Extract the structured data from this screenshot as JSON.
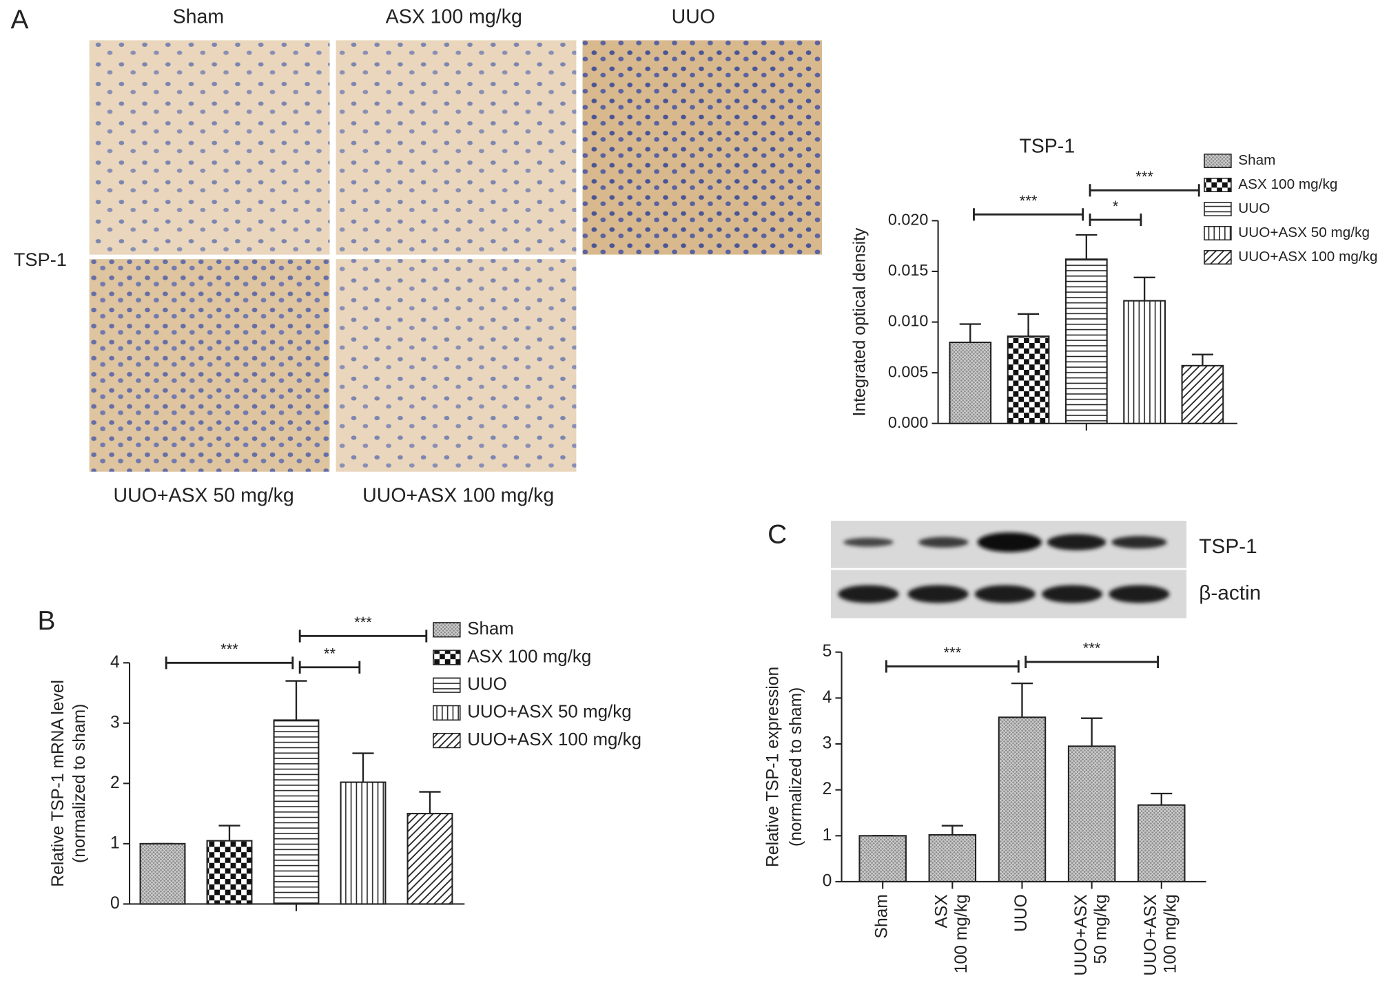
{
  "figure": {
    "panel_labels": [
      "A",
      "B",
      "C"
    ],
    "micrographs": {
      "row_label": "TSP-1",
      "labels": [
        "Sham",
        "ASX 100 mg/kg",
        "UUO",
        "UUO+ASX 50 mg/kg",
        "UUO+ASX 100 mg/kg"
      ]
    },
    "blot": {
      "labels": [
        "TSP-1",
        "β-actin"
      ]
    }
  },
  "chart_data": [
    {
      "type": "bar",
      "title": "TSP-1",
      "ylabel": [
        "Integrated optical density"
      ],
      "categories": [
        "Sham",
        "ASX 100 mg/kg",
        "UUO",
        "UUO+ASX 50 mg/kg",
        "UUO+ASX 100 mg/kg"
      ],
      "values": [
        0.008,
        0.0086,
        0.0162,
        0.0121,
        0.0057
      ],
      "errors": [
        0.0018,
        0.0022,
        0.0024,
        0.0023,
        0.0011
      ],
      "patterns": [
        "crosshatch",
        "checker",
        "hlines",
        "vlines",
        "diagonal"
      ],
      "ylim": [
        0,
        0.02
      ],
      "yticks": [
        {
          "value": 0,
          "label": "0.000"
        },
        {
          "value": 0.005,
          "label": "0.005"
        },
        {
          "value": 0.01,
          "label": "0.010"
        },
        {
          "value": 0.015,
          "label": "0.015"
        },
        {
          "value": 0.02,
          "label": "0.020"
        }
      ],
      "legend": true,
      "significance": [
        {
          "label": "***",
          "from": "Sham",
          "to": "UUO"
        },
        {
          "label": "*",
          "from": "UUO",
          "to": "UUO+ASX 50 mg/kg"
        },
        {
          "label": "***",
          "from": "UUO",
          "to": "UUO+ASX 100 mg/kg"
        }
      ]
    },
    {
      "type": "bar",
      "ylabel": [
        "Relative TSP-1 mRNA level",
        "(normalized to sham)"
      ],
      "categories": [
        "Sham",
        "ASX 100 mg/kg",
        "UUO",
        "UUO+ASX 50 mg/kg",
        "UUO+ASX 100 mg/kg"
      ],
      "values": [
        1.0,
        1.05,
        3.05,
        2.02,
        1.5
      ],
      "errors": [
        0,
        0.25,
        0.65,
        0.48,
        0.36
      ],
      "patterns": [
        "crosshatch",
        "checker",
        "hlines",
        "vlines",
        "diagonal"
      ],
      "ylim": [
        0,
        4
      ],
      "yticks": [
        0,
        1,
        2,
        3,
        4
      ],
      "legend": true,
      "significance": [
        {
          "label": "***",
          "from": "Sham",
          "to": "UUO"
        },
        {
          "label": "**",
          "from": "UUO",
          "to": "UUO+ASX 50 mg/kg"
        },
        {
          "label": "***",
          "from": "UUO",
          "to": "UUO+ASX 100 mg/kg"
        }
      ]
    },
    {
      "type": "bar",
      "ylabel": [
        "Relative TSP-1 expression",
        "(normalized to sham)"
      ],
      "categories": [
        "Sham",
        "ASX\n100 mg/kg",
        "UUO",
        "UUO+ASX\n50 mg/kg",
        "UUO+ASX\n100 mg/kg"
      ],
      "values": [
        1.0,
        1.02,
        3.58,
        2.95,
        1.67
      ],
      "errors": [
        0,
        0.2,
        0.74,
        0.61,
        0.25
      ],
      "patterns": [
        "crosshatch",
        "crosshatch",
        "crosshatch",
        "crosshatch",
        "crosshatch"
      ],
      "ylim": [
        0,
        5
      ],
      "yticks": [
        0,
        1,
        2,
        3,
        4,
        5
      ],
      "legend": false,
      "significance": [
        {
          "label": "***",
          "from": "Sham",
          "to": "UUO"
        },
        {
          "label": "***",
          "from": "UUO",
          "to": "UUO+ASX\n100 mg/kg"
        }
      ]
    }
  ]
}
